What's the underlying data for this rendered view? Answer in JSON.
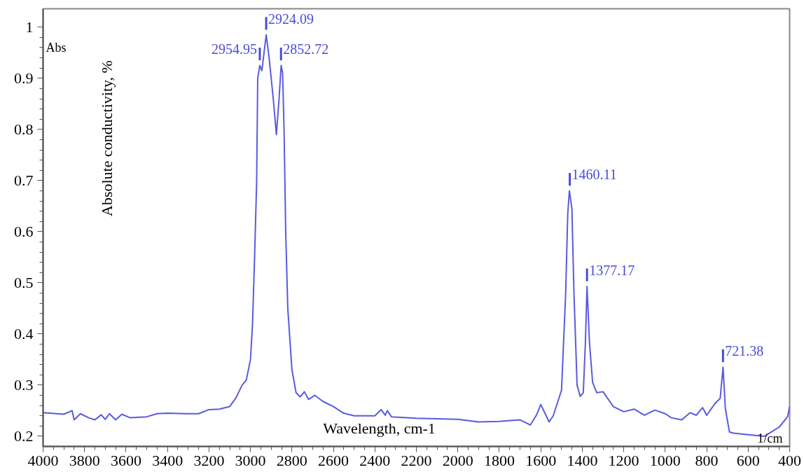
{
  "chart_data": {
    "type": "line",
    "xlabel": "Wavelength, cm-1",
    "ylabel": "Absolute conductivity, %",
    "xlim": [
      4000,
      400
    ],
    "ylim": [
      0.18,
      1.036
    ],
    "xticks": [
      4000,
      3800,
      3600,
      3400,
      3200,
      3000,
      2800,
      2600,
      2400,
      2200,
      2000,
      1800,
      1600,
      1400,
      1200,
      1000,
      800,
      600,
      400
    ],
    "yticks": [
      0.2,
      0.3,
      0.4,
      0.5,
      0.6,
      0.7,
      0.8,
      0.9,
      1
    ],
    "grid": false,
    "marker": "none",
    "line_style": "solid",
    "series": [
      {
        "color": "#5a5ae0",
        "x": [
          4000,
          3900,
          3860,
          3850,
          3820,
          3780,
          3750,
          3720,
          3700,
          3680,
          3650,
          3620,
          3580,
          3550,
          3500,
          3450,
          3400,
          3300,
          3250,
          3200,
          3150,
          3100,
          3070,
          3040,
          3020,
          3000,
          2990,
          2980,
          2970,
          2965,
          2955,
          2945,
          2924,
          2910,
          2890,
          2875,
          2862,
          2852,
          2845,
          2838,
          2830,
          2820,
          2800,
          2780,
          2760,
          2740,
          2720,
          2690,
          2650,
          2600,
          2550,
          2500,
          2400,
          2370,
          2350,
          2340,
          2320,
          2200,
          2000,
          1900,
          1800,
          1700,
          1650,
          1620,
          1600,
          1580,
          1560,
          1540,
          1520,
          1500,
          1480,
          1470,
          1462,
          1450,
          1440,
          1425,
          1410,
          1395,
          1385,
          1377,
          1365,
          1350,
          1330,
          1300,
          1250,
          1200,
          1150,
          1100,
          1050,
          1000,
          970,
          920,
          880,
          850,
          820,
          800,
          760,
          735,
          721,
          710,
          690,
          670,
          600,
          520,
          490,
          450,
          410,
          400
        ],
        "values": [
          0.246,
          0.243,
          0.25,
          0.232,
          0.244,
          0.236,
          0.232,
          0.242,
          0.233,
          0.244,
          0.232,
          0.243,
          0.236,
          0.237,
          0.238,
          0.244,
          0.245,
          0.244,
          0.244,
          0.252,
          0.253,
          0.258,
          0.275,
          0.3,
          0.31,
          0.35,
          0.42,
          0.55,
          0.7,
          0.9,
          0.925,
          0.915,
          0.985,
          0.94,
          0.86,
          0.79,
          0.86,
          0.925,
          0.91,
          0.8,
          0.6,
          0.45,
          0.33,
          0.285,
          0.277,
          0.287,
          0.272,
          0.28,
          0.268,
          0.258,
          0.245,
          0.24,
          0.24,
          0.252,
          0.241,
          0.25,
          0.238,
          0.235,
          0.233,
          0.228,
          0.229,
          0.232,
          0.222,
          0.242,
          0.262,
          0.245,
          0.228,
          0.24,
          0.265,
          0.29,
          0.48,
          0.635,
          0.68,
          0.645,
          0.48,
          0.3,
          0.278,
          0.285,
          0.382,
          0.493,
          0.382,
          0.305,
          0.285,
          0.287,
          0.258,
          0.248,
          0.253,
          0.241,
          0.251,
          0.244,
          0.236,
          0.232,
          0.246,
          0.241,
          0.256,
          0.241,
          0.264,
          0.274,
          0.335,
          0.254,
          0.208,
          0.206,
          0.203,
          0.2,
          0.208,
          0.218,
          0.238,
          0.258
        ]
      }
    ],
    "annotations": [
      {
        "text": "2954.95",
        "x": 2954.95,
        "y": 0.925
      },
      {
        "text": "2924.09",
        "x": 2924.09,
        "y": 0.985
      },
      {
        "text": "2852.72",
        "x": 2852.72,
        "y": 0.925
      },
      {
        "text": "1460.11",
        "x": 1460.11,
        "y": 0.68
      },
      {
        "text": "1377.17",
        "x": 1377.17,
        "y": 0.493
      },
      {
        "text": "721.38",
        "x": 721.38,
        "y": 0.335
      },
      "Abs",
      "1/cm"
    ]
  }
}
